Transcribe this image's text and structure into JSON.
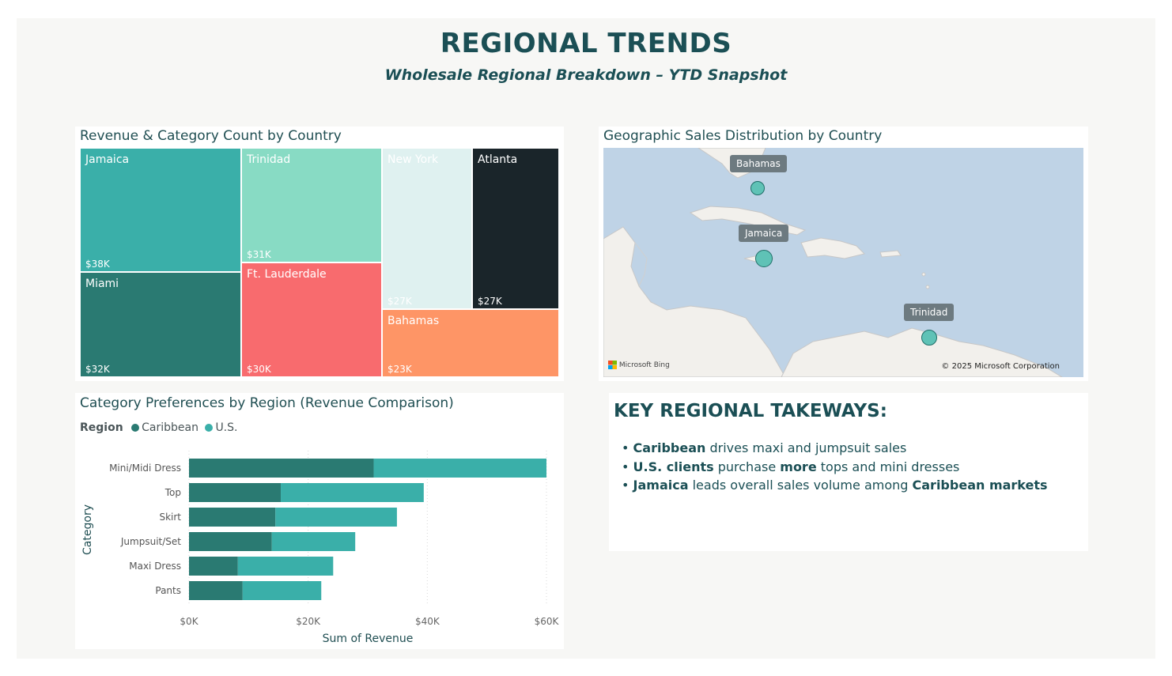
{
  "header": {
    "title": "REGIONAL TRENDS",
    "subtitle": "Wholesale Regional Breakdown – YTD Snapshot"
  },
  "colors": {
    "accent_dark": "#1b4f55",
    "caribbean": "#2a7a72",
    "us": "#3aafa9"
  },
  "treemap": {
    "title": "Revenue & Category Count by Country",
    "tiles": [
      {
        "name": "Jamaica",
        "value_label": "$38K",
        "color": "#3aafa9",
        "text_color": "#ffffff"
      },
      {
        "name": "Miami",
        "value_label": "$32K",
        "color": "#2a7a72",
        "text_color": "#ffffff"
      },
      {
        "name": "Trinidad",
        "value_label": "$31K",
        "color": "#88dbc4",
        "text_color": "#ffffff"
      },
      {
        "name": "Ft. Lauderdale",
        "value_label": "$30K",
        "color": "#f86b6e",
        "text_color": "#ffffff"
      },
      {
        "name": "New York",
        "value_label": "$27K",
        "color": "#dff1f0",
        "text_color": "#ffffff"
      },
      {
        "name": "Atlanta",
        "value_label": "$27K",
        "color": "#1a252a",
        "text_color": "#ffffff"
      },
      {
        "name": "Bahamas",
        "value_label": "$23K",
        "color": "#fe9566",
        "text_color": "#ffffff"
      }
    ]
  },
  "map_panel": {
    "title": "Geographic Sales Distribution by Country",
    "locations": [
      "Bahamas",
      "Jamaica",
      "Trinidad"
    ],
    "attribution": "Microsoft Bing",
    "copyright": "© 2025 Microsoft Corporation"
  },
  "takeaways": {
    "title": "KEY REGIONAL TAKEWAYS:",
    "bullets": [
      {
        "b1": "Caribbean",
        "t1": " drives maxi and jumpsuit sales"
      },
      {
        "b1": "U.S. clients",
        "t1": " purchase ",
        "b2": "more",
        "t2": " tops and mini dresses"
      },
      {
        "b1": "Jamaica",
        "t1": " leads overall sales volume among ",
        "b2": "Caribbean markets"
      }
    ]
  },
  "bar_panel": {
    "title": "Category Preferences by Region (Revenue Comparison)",
    "legend_title": "Region"
  },
  "chart_data": {
    "type": "bar",
    "orientation": "horizontal",
    "stacked": true,
    "title": "Category Preferences by Region (Revenue Comparison)",
    "xlabel": "Sum of Revenue",
    "ylabel": "Category",
    "categories": [
      "Mini/Midi Dress",
      "Top",
      "Skirt",
      "Jumpsuit/Set",
      "Maxi Dress",
      "Pants"
    ],
    "series": [
      {
        "name": "Caribbean",
        "color": "#2a7a72",
        "values": [
          31000,
          15400,
          14500,
          13900,
          8200,
          9000
        ]
      },
      {
        "name": "U.S.",
        "color": "#3aafa9",
        "values": [
          29000,
          24000,
          20400,
          14000,
          16000,
          13200
        ]
      }
    ],
    "xlim": [
      0,
      60000
    ],
    "xticks": [
      "$0K",
      "$20K",
      "$40K",
      "$60K"
    ],
    "xtick_values": [
      0,
      20000,
      40000,
      60000
    ],
    "legend_position": "top-left",
    "grid": true
  }
}
